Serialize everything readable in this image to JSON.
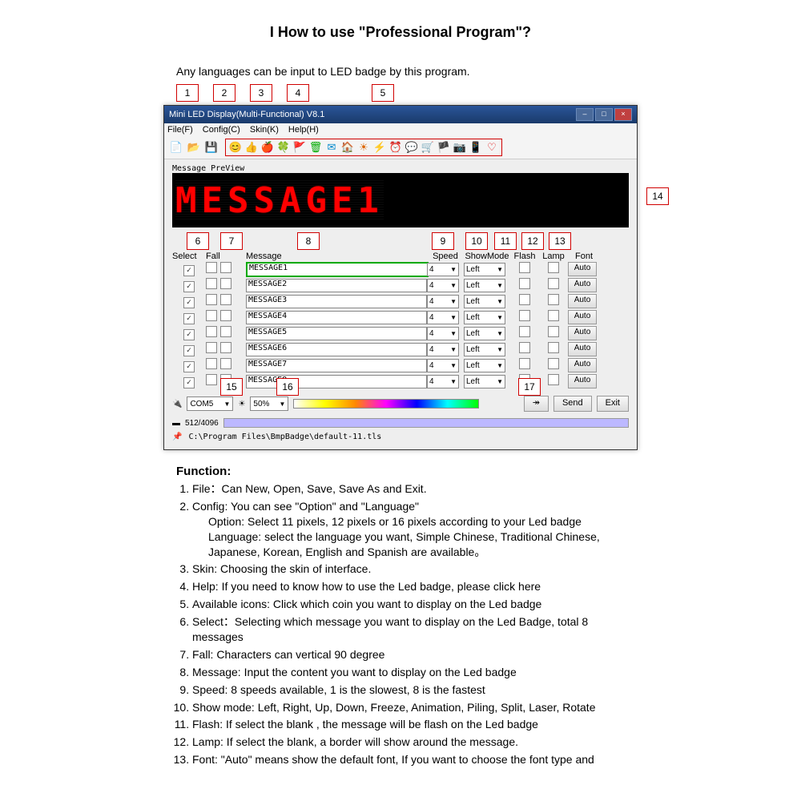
{
  "page": {
    "title": "I How to use \"Professional Program\"?",
    "intro": "Any languages can be input to LED badge by this program."
  },
  "callouts": {
    "top": [
      "1",
      "2",
      "3",
      "4",
      "5"
    ],
    "c6": "6",
    "c7": "7",
    "c8": "8",
    "c9": "9",
    "c10": "10",
    "c11": "11",
    "c12": "12",
    "c13": "13",
    "c14": "14",
    "c15": "15",
    "c16": "16",
    "c17": "17"
  },
  "window": {
    "title": "Mini LED Display(Multi-Functional) V8.1",
    "menus": [
      "File(F)",
      "Config(C)",
      "Skin(K)",
      "Help(H)"
    ],
    "file_icons": [
      "📄",
      "📂",
      "💾"
    ],
    "strip_icons": [
      "😊",
      "👍",
      "🍎",
      "🍀",
      "🚩",
      "🗑",
      "✉",
      "🏠",
      "☀",
      "⚡",
      "⏰",
      "💬",
      "🛒",
      "🏴",
      "📷",
      "📱",
      "♡"
    ],
    "strip_colors": [
      "#d00",
      "#0a0",
      "#d00",
      "#0a0",
      "#d0d",
      "#0a0",
      "#08c",
      "#0a0",
      "#d60",
      "#b80",
      "#d00",
      "#d0d",
      "#0a0",
      "#000",
      "#666",
      "#d0d",
      "#d00"
    ],
    "preview_label": "Message PreView",
    "preview_text": "MESSAGE1",
    "headers": {
      "select": "Select",
      "fall": "Fall",
      "message": "Message",
      "speed": "Speed",
      "showmode": "ShowMode",
      "flash": "Flash",
      "lamp": "Lamp",
      "font": "Font"
    },
    "rows": [
      {
        "msg": "MESSAGE1"
      },
      {
        "msg": "MESSAGE2"
      },
      {
        "msg": "MESSAGE3"
      },
      {
        "msg": "MESSAGE4"
      },
      {
        "msg": "MESSAGE5"
      },
      {
        "msg": "MESSAGE6"
      },
      {
        "msg": "MESSAGE7"
      },
      {
        "msg": "MESSAGE8"
      }
    ],
    "row_defaults": {
      "speed": "4",
      "showmode": "Left",
      "font_btn": "Auto"
    },
    "footer": {
      "port": "COM5",
      "brightness": "50%",
      "arrow": "↠",
      "send": "Send",
      "exit": "Exit",
      "memory": "512/4096",
      "path": "C:\\Program Files\\BmpBadge\\default-11.tls"
    }
  },
  "functions": {
    "heading": "Function:",
    "items": [
      "File：Can New, Open, Save, Save As and Exit.",
      "Config: You can see \"Option\" and \"Language\"",
      "Skin: Choosing the skin of interface.",
      "Help: If you need to know how to use the Led badge, please click here",
      "Available icons: Click which coin you want to display on the Led badge",
      "Select：Selecting which message you want to display on the Led Badge, total 8 messages",
      "Fall: Characters can vertical 90 degree",
      "Message: Input the content you want to display on the Led badge",
      "Speed: 8 speeds available, 1 is the slowest, 8 is the fastest",
      "Show mode: Left, Right, Up, Down, Freeze, Animation, Piling, Split, Laser, Rotate",
      "Flash: If select the blank , the message will be flash on the Led badge",
      "Lamp: If select the blank, a border will show around the message.",
      "Font: \"Auto\" means show the default font, If you want to choose the font type and"
    ],
    "config_sub1": "Option: Select 11 pixels, 12 pixels or 16 pixels according to your Led badge",
    "config_sub2": "Language: select the language you want, Simple Chinese, Traditional Chinese, Japanese, Korean, English and Spanish are available。"
  }
}
